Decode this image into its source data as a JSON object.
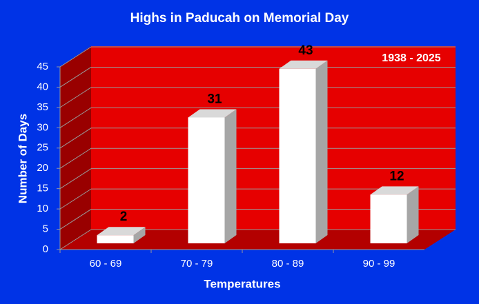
{
  "chart_data": {
    "type": "bar",
    "title": "Highs in Paducah on Memorial Day",
    "annotation": "1938 - 2025",
    "x_label": "Temperatures",
    "y_label": "Number of Days",
    "categories": [
      "60 - 69",
      "70 - 79",
      "80 - 89",
      "90 - 99"
    ],
    "values": [
      2,
      31,
      43,
      12
    ],
    "color": "#ffffff",
    "ylim": [
      0,
      45
    ],
    "yticks": [
      0,
      5,
      10,
      15,
      20,
      25,
      30,
      35,
      40,
      45
    ],
    "grid": true
  }
}
